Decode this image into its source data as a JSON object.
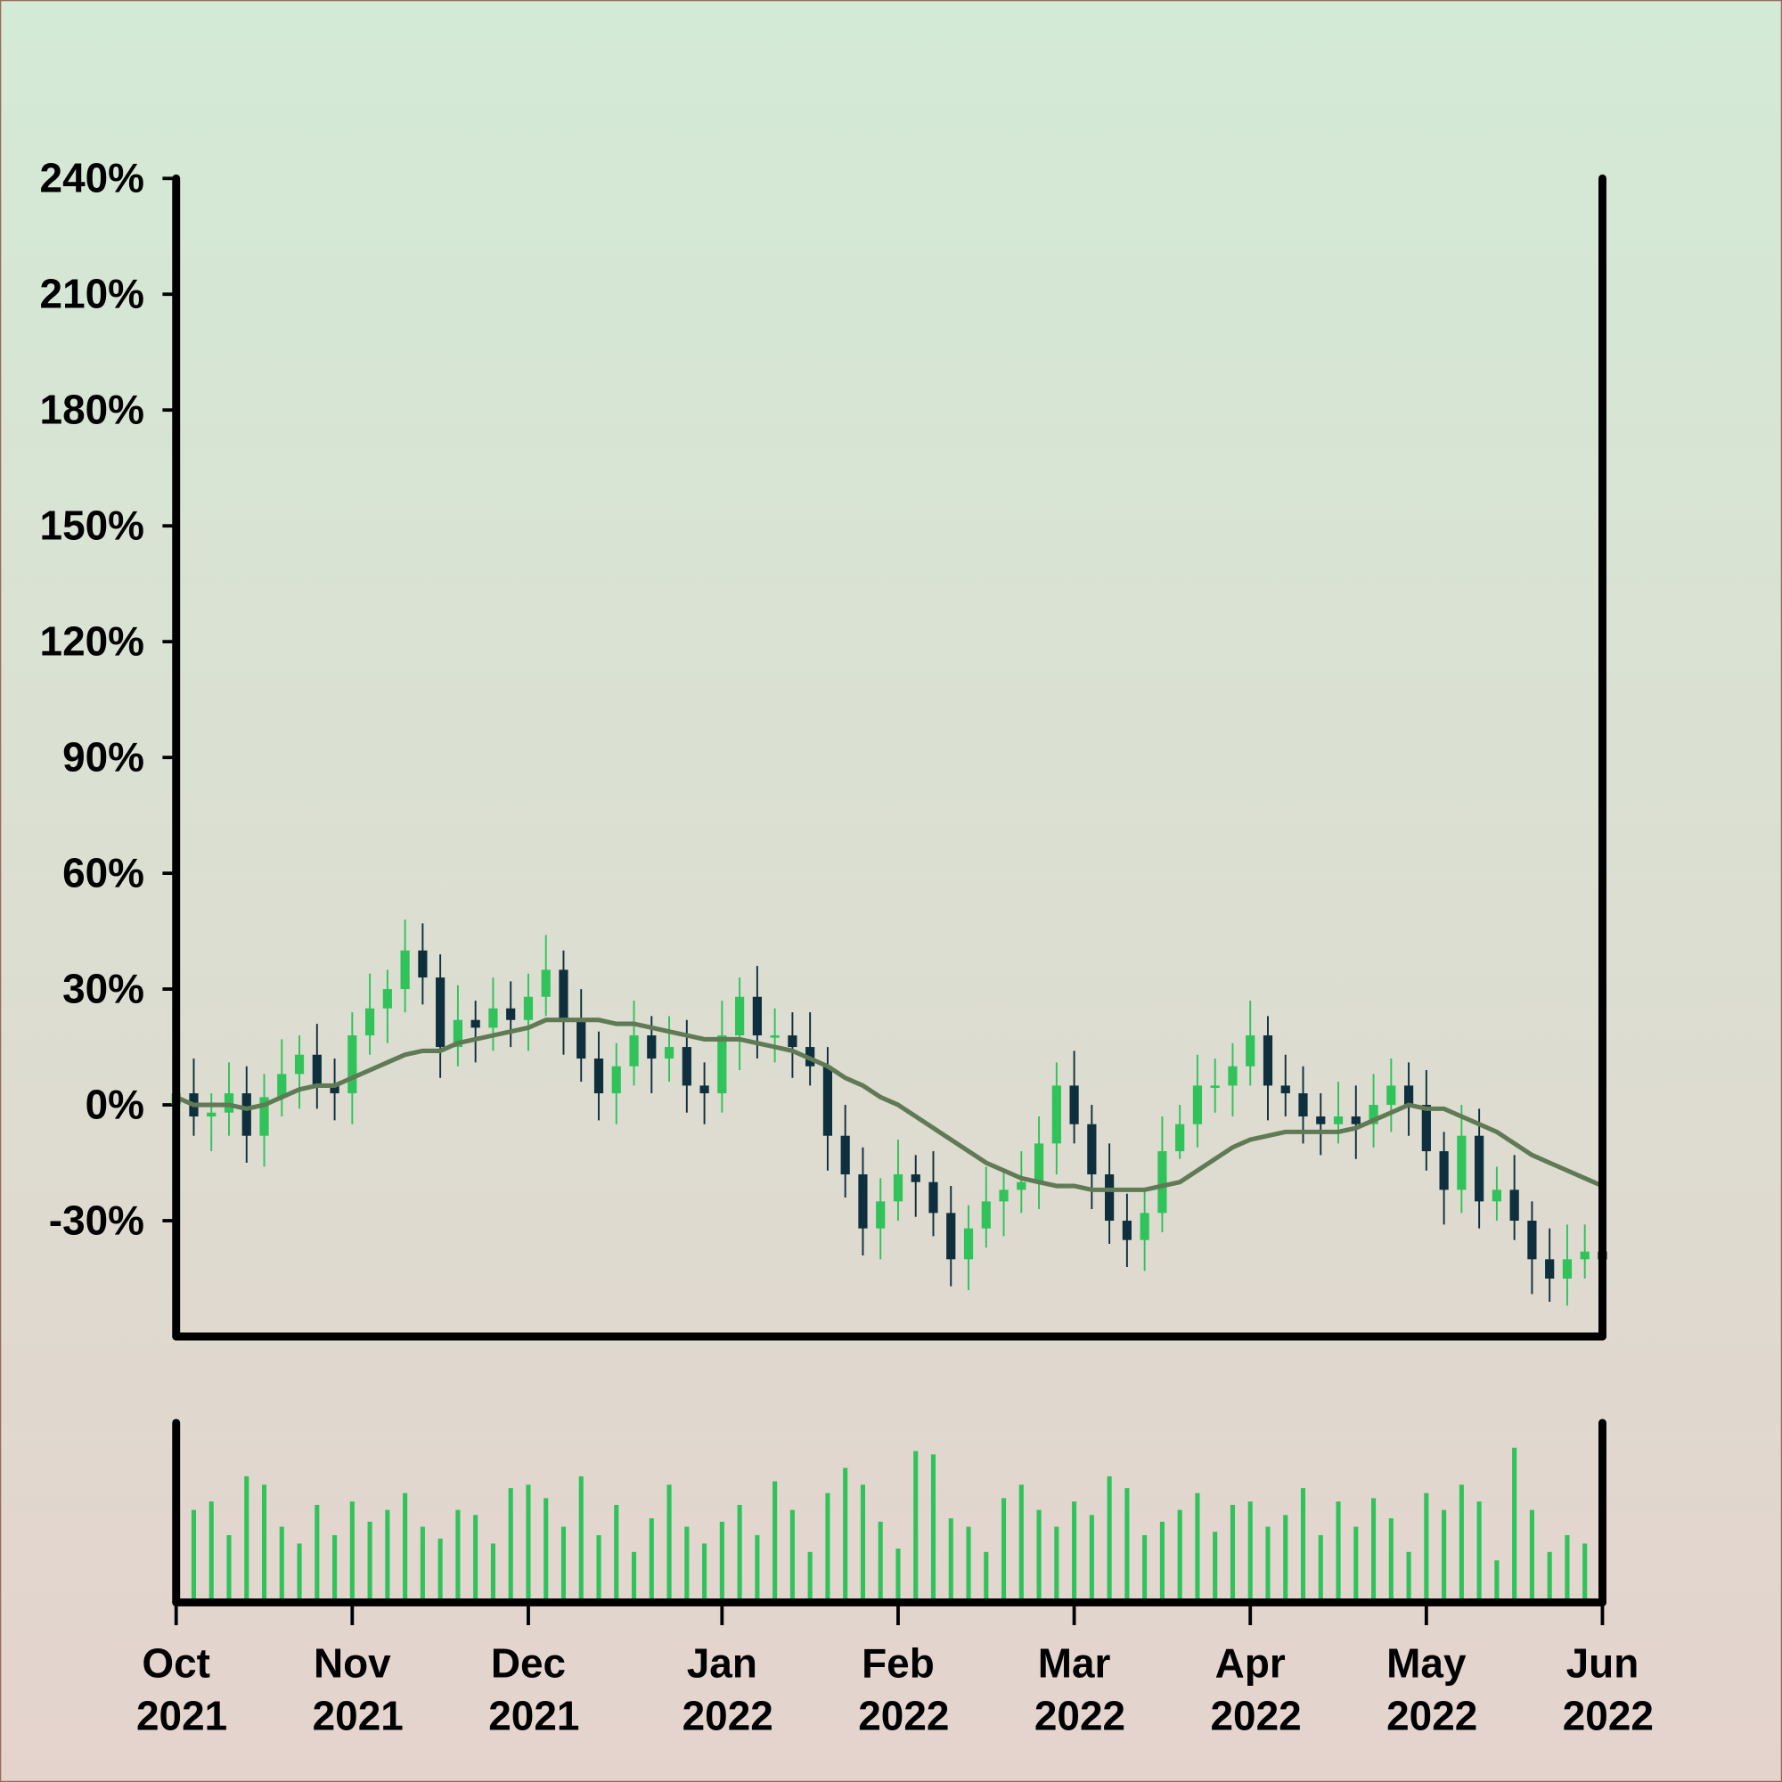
{
  "chart_data": {
    "type": "candlestick",
    "categories": [
      "Oct 2021",
      null,
      null,
      null,
      null,
      null,
      null,
      null,
      null,
      null,
      "Nov 2021",
      null,
      null,
      null,
      null,
      null,
      null,
      null,
      null,
      null,
      "Dec 2021",
      null,
      null,
      null,
      null,
      null,
      null,
      null,
      null,
      null,
      null,
      "Jan 2022",
      null,
      null,
      null,
      null,
      null,
      null,
      null,
      null,
      null,
      "Feb 2022",
      null,
      null,
      null,
      null,
      null,
      null,
      null,
      null,
      null,
      "Mar 2022",
      null,
      null,
      null,
      null,
      null,
      null,
      null,
      null,
      null,
      "Apr 2022",
      null,
      null,
      null,
      null,
      null,
      null,
      null,
      null,
      null,
      "May 2022",
      null,
      null,
      null,
      null,
      null,
      null,
      null,
      null,
      null,
      "Jun 2022"
    ],
    "open": [
      0,
      3,
      -3,
      -2,
      3,
      -8,
      2,
      8,
      13,
      5,
      3,
      18,
      25,
      30,
      40,
      33,
      15,
      22,
      20,
      25,
      22,
      28,
      35,
      22,
      12,
      3,
      10,
      18,
      12,
      15,
      5,
      3,
      18,
      28,
      18,
      18,
      15,
      10,
      -8,
      -18,
      -32,
      -25,
      -18,
      -20,
      -28,
      -40,
      -32,
      -25,
      -22,
      -20,
      -10,
      5,
      -5,
      -18,
      -30,
      -35,
      -28,
      -12,
      -5,
      5,
      5,
      10,
      18,
      5,
      3,
      -3,
      -5,
      -3,
      -5,
      0,
      5,
      0,
      -12,
      -22,
      -8,
      -25,
      -22,
      -30,
      -40,
      -45,
      -40,
      -38
    ],
    "high": [
      9,
      12,
      3,
      11,
      10,
      8,
      17,
      18,
      21,
      12,
      24,
      34,
      35,
      48,
      47,
      39,
      31,
      27,
      33,
      32,
      34,
      44,
      40,
      30,
      19,
      16,
      27,
      23,
      23,
      22,
      11,
      27,
      33,
      36,
      25,
      24,
      24,
      15,
      0,
      -11,
      -19,
      -9,
      -13,
      -12,
      -21,
      -26,
      -16,
      -17,
      -12,
      -3,
      11,
      14,
      0,
      -10,
      -23,
      -22,
      -3,
      0,
      13,
      12,
      16,
      27,
      23,
      13,
      10,
      3,
      6,
      5,
      8,
      12,
      11,
      9,
      -7,
      0,
      -1,
      -16,
      -13,
      -25,
      -32,
      -31,
      -31,
      -29
    ],
    "low": [
      -8,
      -8,
      -12,
      -8,
      -15,
      -16,
      -3,
      -1,
      -1,
      -4,
      -5,
      13,
      16,
      24,
      26,
      7,
      10,
      11,
      14,
      15,
      14,
      23,
      13,
      6,
      -4,
      -5,
      5,
      3,
      6,
      -2,
      -5,
      -2,
      9,
      12,
      11,
      7,
      5,
      -17,
      -24,
      -39,
      -40,
      -30,
      -29,
      -34,
      -47,
      -48,
      -37,
      -34,
      -28,
      -27,
      -18,
      -10,
      -27,
      -36,
      -42,
      -43,
      -33,
      -14,
      -11,
      -2,
      -3,
      5,
      -4,
      -3,
      -10,
      -13,
      -10,
      -14,
      -11,
      -7,
      -8,
      -17,
      -31,
      -28,
      -32,
      -30,
      -35,
      -49,
      -51,
      -52,
      -45,
      -48
    ],
    "close": [
      3,
      -3,
      -2,
      3,
      -8,
      2,
      8,
      13,
      5,
      3,
      18,
      25,
      30,
      40,
      33,
      15,
      22,
      20,
      25,
      22,
      28,
      35,
      22,
      12,
      3,
      10,
      18,
      12,
      15,
      5,
      3,
      18,
      28,
      18,
      18,
      15,
      10,
      -8,
      -18,
      -32,
      -25,
      -18,
      -20,
      -28,
      -40,
      -32,
      -25,
      -22,
      -20,
      -10,
      5,
      -5,
      -18,
      -30,
      -35,
      -28,
      -12,
      -5,
      5,
      5,
      10,
      18,
      5,
      3,
      -3,
      -5,
      -3,
      -5,
      0,
      5,
      0,
      -12,
      -22,
      -8,
      -25,
      -22,
      -30,
      -40,
      -45,
      -40,
      -38,
      -40
    ],
    "up_color": "#2fc35a",
    "down_color": "#0e2f3d",
    "moving_average": {
      "color": "#5f7a55",
      "values": [
        2,
        0,
        0,
        0,
        -1,
        0,
        2,
        4,
        5,
        5,
        7,
        9,
        11,
        13,
        14,
        14,
        16,
        17,
        18,
        19,
        20,
        22,
        22,
        22,
        22,
        21,
        21,
        20,
        19,
        18,
        17,
        17,
        17,
        16,
        15,
        14,
        12,
        10,
        7,
        5,
        2,
        0,
        -3,
        -6,
        -9,
        -12,
        -15,
        -17,
        -19,
        -20,
        -21,
        -21,
        -22,
        -22,
        -22,
        -22,
        -21,
        -20,
        -17,
        -14,
        -11,
        -9,
        -8,
        -7,
        -7,
        -7,
        -7,
        -6,
        -4,
        -2,
        0,
        -1,
        -1,
        -3,
        -5,
        -7,
        -10,
        -13,
        -15,
        -17,
        -19,
        -21
      ]
    },
    "volume": {
      "color": "#2fc35a",
      "ylim": [
        0,
        100
      ],
      "values": [
        8,
        55,
        60,
        40,
        75,
        70,
        45,
        35,
        58,
        40,
        60,
        48,
        55,
        65,
        45,
        38,
        55,
        52,
        35,
        68,
        70,
        62,
        45,
        75,
        40,
        58,
        30,
        50,
        70,
        45,
        35,
        48,
        58,
        40,
        72,
        55,
        30,
        65,
        80,
        70,
        48,
        32,
        90,
        88,
        50,
        45,
        30,
        62,
        70,
        55,
        45,
        60,
        52,
        75,
        68,
        40,
        48,
        55,
        65,
        42,
        58,
        60,
        45,
        52,
        68,
        40,
        60,
        45,
        62,
        50,
        30,
        65,
        55,
        70,
        60,
        25,
        92,
        55,
        30,
        40,
        35,
        95
      ]
    },
    "ylim": [
      -60,
      240
    ],
    "yticks": [
      {
        "value": -30,
        "label": "-30%"
      },
      {
        "value": 0,
        "label": "0%"
      },
      {
        "value": 30,
        "label": "30%"
      },
      {
        "value": 60,
        "label": "60%"
      },
      {
        "value": 90,
        "label": "90%"
      },
      {
        "value": 120,
        "label": "120%"
      },
      {
        "value": 150,
        "label": "150%"
      },
      {
        "value": 180,
        "label": "180%"
      },
      {
        "value": 210,
        "label": "210%"
      },
      {
        "value": 240,
        "label": "240%"
      }
    ]
  }
}
